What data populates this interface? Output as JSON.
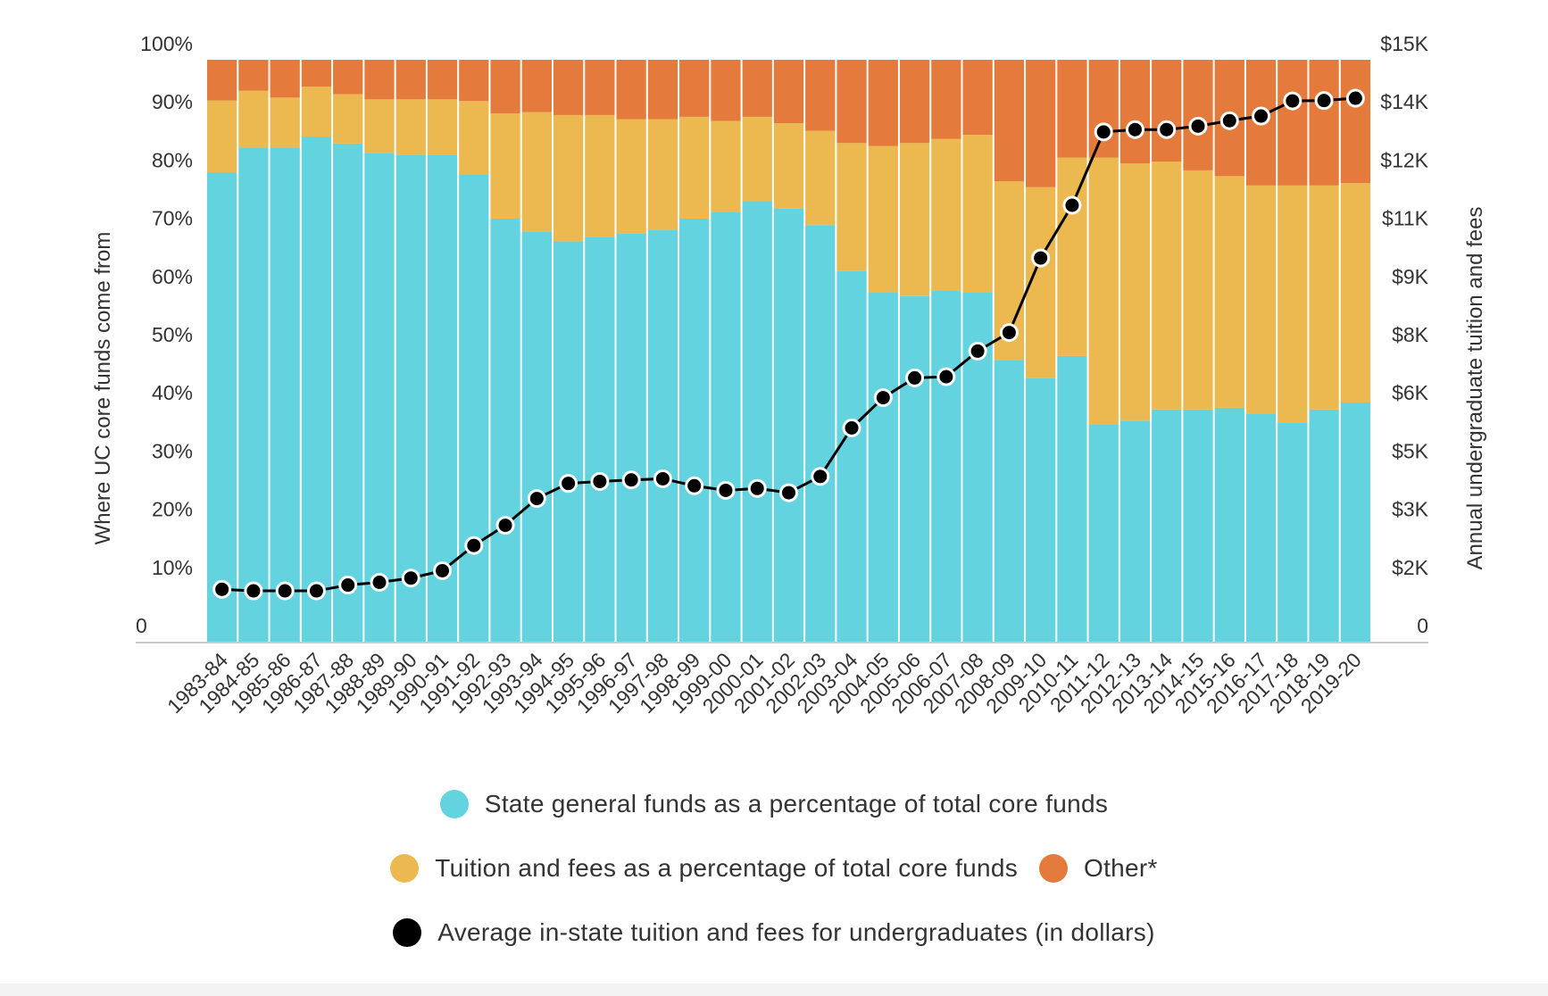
{
  "chart_data": {
    "type": "bar",
    "stacked": true,
    "categories": [
      "1983-84",
      "1984-85",
      "1985-86",
      "1986-87",
      "1987-88",
      "1988-89",
      "1989-90",
      "1990-91",
      "1991-92",
      "1992-93",
      "1993-94",
      "1994-95",
      "1995-96",
      "1996-97",
      "1997-98",
      "1998-99",
      "1999-00",
      "2000-01",
      "2001-02",
      "2002-03",
      "2003-04",
      "2004-05",
      "2005-06",
      "2006-07",
      "2007-08",
      "2008-09",
      "2009-10",
      "2010-11",
      "2011-12",
      "2012-13",
      "2013-14",
      "2014-15",
      "2015-16",
      "2016-17",
      "2017-18",
      "2018-19",
      "2019-20"
    ],
    "series": [
      {
        "name": "State general funds as a percentage of total core funds",
        "color": "#62d3df",
        "values": [
          80.6,
          84.9,
          84.9,
          86.8,
          85.6,
          84.0,
          83.7,
          83.7,
          80.3,
          72.7,
          70.5,
          68.8,
          69.6,
          70.1,
          70.8,
          72.7,
          73.9,
          75.7,
          74.5,
          71.6,
          63.7,
          60.1,
          59.4,
          60.4,
          60.1,
          48.4,
          45.3,
          49.1,
          37.4,
          38.0,
          39.9,
          39.9,
          40.2,
          39.2,
          37.7,
          39.9,
          41.1
        ]
      },
      {
        "name": "Tuition and fees as a percentage of total core funds",
        "color": "#ebb94f",
        "values": [
          12.4,
          9.8,
          8.6,
          8.6,
          8.5,
          9.2,
          9.5,
          9.5,
          12.6,
          18.1,
          20.5,
          21.7,
          20.9,
          19.7,
          19.0,
          17.5,
          15.6,
          14.5,
          14.6,
          16.2,
          22.0,
          25.1,
          26.3,
          26.0,
          27.0,
          30.7,
          32.8,
          34.1,
          45.8,
          44.2,
          42.6,
          41.1,
          39.8,
          39.2,
          40.7,
          38.5,
          37.7
        ]
      },
      {
        "name": "Other*",
        "color": "#e47b3c",
        "values": [
          7.0,
          5.3,
          6.5,
          4.6,
          5.9,
          6.8,
          6.8,
          6.8,
          7.1,
          9.2,
          9.0,
          9.5,
          9.5,
          10.2,
          10.2,
          9.8,
          10.5,
          9.8,
          10.9,
          12.2,
          14.3,
          14.8,
          14.3,
          13.6,
          12.9,
          20.9,
          21.9,
          16.8,
          16.8,
          17.8,
          17.5,
          19.0,
          20.0,
          21.6,
          21.6,
          21.6,
          21.2
        ]
      },
      {
        "name": "Average in-state tuition and fees for undergraduates (in dollars)",
        "color": "#000000",
        "type": "line",
        "axis": "right",
        "values": [
          1350,
          1310,
          1310,
          1310,
          1460,
          1530,
          1640,
          1830,
          2480,
          3000,
          3690,
          4080,
          4130,
          4170,
          4200,
          4020,
          3900,
          3950,
          3840,
          4260,
          5510,
          6290,
          6800,
          6830,
          7490,
          7970,
          9890,
          11250,
          13140,
          13200,
          13200,
          13290,
          13430,
          13550,
          13940,
          13950,
          14010
        ]
      }
    ],
    "ylabel": "Where UC core funds come from",
    "ylabel_right": "Annual undergraduate tuition and fees",
    "ylim": [
      0,
      100
    ],
    "ylim_right": [
      0,
      15000
    ],
    "yticks": [
      "0",
      "10%",
      "20%",
      "30%",
      "40%",
      "50%",
      "60%",
      "70%",
      "80%",
      "90%",
      "100%"
    ],
    "yticks_right": [
      "0",
      "$2K",
      "$3K",
      "$5K",
      "$6K",
      "$8K",
      "$9K",
      "$11K",
      "$12K",
      "$14K",
      "$15K"
    ],
    "grid": false,
    "legend_placement": "bottom"
  },
  "legend": {
    "state": "State general funds as a percentage of total core funds",
    "tuition": "Tuition and fees as a percentage of total core funds",
    "other": "Other*",
    "avg": "Average in-state tuition and fees for undergraduates (in dollars)"
  }
}
